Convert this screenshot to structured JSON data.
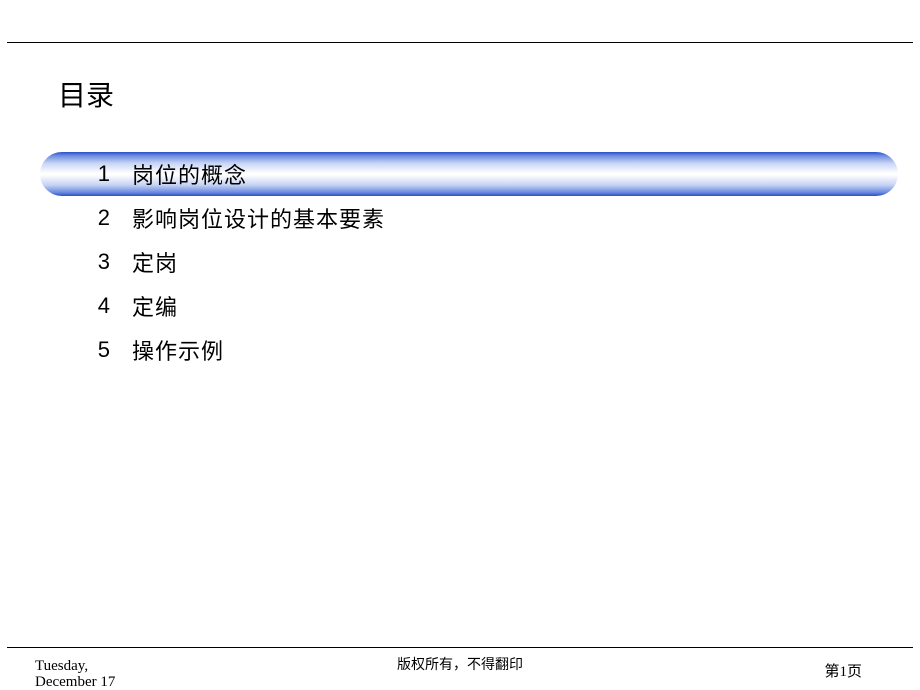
{
  "title": "目录",
  "toc": {
    "highlighted_index": 0,
    "highlight_gradient": [
      "#2a4ec8",
      "#6a8ae0",
      "#c5d3f4",
      "#ffffff",
      "#ffffff",
      "#c5d3f4",
      "#6a8ae0",
      "#2a4ec8"
    ],
    "items": [
      {
        "num": "1",
        "text": "岗位的概念"
      },
      {
        "num": "2",
        "text": "影响岗位设计的基本要素"
      },
      {
        "num": "3",
        "text": "定岗"
      },
      {
        "num": "4",
        "text": "定编"
      },
      {
        "num": "5",
        "text": "操作示例"
      }
    ]
  },
  "footer": {
    "date_line1": "Tuesday,",
    "date_line2": "December 17",
    "copyright": "版权所有，不得翻印",
    "page": "第1页"
  },
  "styles": {
    "rule_color": "#000000",
    "text_color": "#000000",
    "background_color": "#ffffff",
    "title_fontsize": 28,
    "toc_fontsize": 22,
    "footer_fontsize": 14
  }
}
